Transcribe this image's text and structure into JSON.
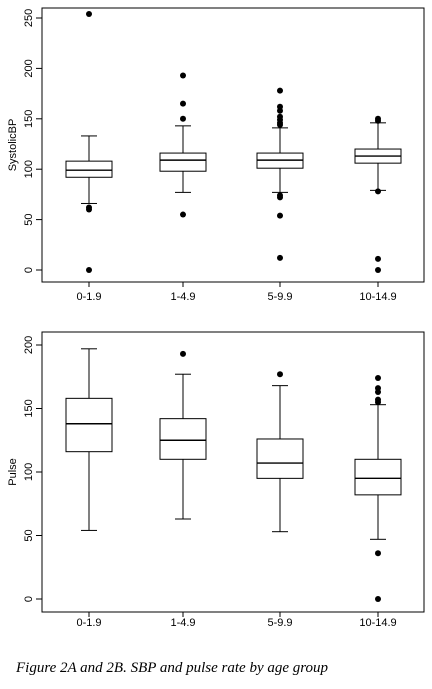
{
  "caption": "Figure 2A and 2B. SBP and pulse rate by age group",
  "chart_data": [
    {
      "type": "box",
      "title": "",
      "xlabel": "",
      "ylabel": "SystolicBP",
      "ylim": [
        0,
        250
      ],
      "yticks": [
        0,
        50,
        100,
        150,
        200,
        250
      ],
      "grid": false,
      "categories": [
        "0-1.9",
        "1-4.9",
        "5-9.9",
        "10-14.9"
      ],
      "boxes": [
        {
          "category": "0-1.9",
          "whisker_low": 66,
          "q1": 92,
          "median": 99,
          "q3": 108,
          "whisker_high": 133,
          "outliers": [
            60,
            62,
            0,
            254
          ]
        },
        {
          "category": "1-4.9",
          "whisker_low": 77,
          "q1": 98,
          "median": 109,
          "q3": 116,
          "whisker_high": 143,
          "outliers": [
            55,
            150,
            165,
            193
          ]
        },
        {
          "category": "5-9.9",
          "whisker_low": 77,
          "q1": 101,
          "median": 109,
          "q3": 116,
          "whisker_high": 141,
          "outliers": [
            12,
            54,
            72,
            74,
            144,
            146,
            149,
            152,
            158,
            162,
            178
          ]
        },
        {
          "category": "10-14.9",
          "whisker_low": 79,
          "q1": 106,
          "median": 113,
          "q3": 120,
          "whisker_high": 146,
          "outliers": [
            0,
            11,
            78,
            148,
            150
          ]
        }
      ]
    },
    {
      "type": "box",
      "title": "",
      "xlabel": "",
      "ylabel": "Pulse",
      "ylim": [
        0,
        200
      ],
      "yticks": [
        0,
        50,
        100,
        150,
        200
      ],
      "grid": false,
      "categories": [
        "0-1.9",
        "1-4.9",
        "5-9.9",
        "10-14.9"
      ],
      "boxes": [
        {
          "category": "0-1.9",
          "whisker_low": 54,
          "q1": 116,
          "median": 138,
          "q3": 158,
          "whisker_high": 197,
          "outliers": []
        },
        {
          "category": "1-4.9",
          "whisker_low": 63,
          "q1": 110,
          "median": 125,
          "q3": 142,
          "whisker_high": 177,
          "outliers": [
            193
          ]
        },
        {
          "category": "5-9.9",
          "whisker_low": 53,
          "q1": 95,
          "median": 107,
          "q3": 126,
          "whisker_high": 168,
          "outliers": [
            177
          ]
        },
        {
          "category": "10-14.9",
          "whisker_low": 47,
          "q1": 82,
          "median": 95,
          "q3": 110,
          "whisker_high": 153,
          "outliers": [
            0,
            36,
            155,
            157,
            163,
            166,
            174
          ]
        }
      ]
    }
  ]
}
